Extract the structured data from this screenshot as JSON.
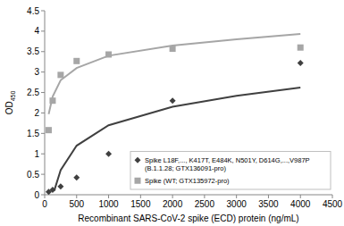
{
  "chart_data": {
    "type": "scatter",
    "x_label": "Recombinant SARS-CoV-2 spike (ECD) protein (ng/mL)",
    "y_label": "OD450",
    "xlim": [
      0,
      4500
    ],
    "xticks": [
      0,
      500,
      1000,
      1500,
      2000,
      2500,
      3000,
      3500,
      4000,
      4500
    ],
    "ylim": [
      0,
      4.5
    ],
    "yticks": [
      0,
      0.5,
      1,
      1.5,
      2,
      2.5,
      3,
      3.5,
      4,
      4.5
    ],
    "grid": false,
    "legend": "lower right",
    "series": [
      {
        "name": "Spike L18F,..., K417T, E484K, N501Y, D614G,...,V987P\n(B.1.1.28; GTX136091-pro)",
        "type": "scatter",
        "marker": "diamond",
        "color": "#404040",
        "x": [
          62.5,
          125,
          250,
          500,
          1000,
          2000,
          4000
        ],
        "values": [
          0.07,
          0.12,
          0.2,
          0.42,
          1.0,
          2.3,
          3.22
        ]
      },
      {
        "name": "Spike (WT; GTX135972-pro)",
        "type": "scatter",
        "marker": "square",
        "color": "#a6a6a6",
        "x": [
          62.5,
          125,
          250,
          500,
          1000,
          2000,
          4000
        ],
        "values": [
          1.58,
          2.3,
          2.93,
          3.27,
          3.43,
          3.57,
          3.6
        ]
      },
      {
        "type": "line",
        "line_style": "solid",
        "color": "#404040",
        "x": [
          150,
          250,
          500,
          1000,
          2000,
          3000,
          4000
        ],
        "values": [
          0.1,
          0.6,
          1.2,
          1.7,
          2.15,
          2.42,
          2.62
        ]
      },
      {
        "type": "line",
        "line_style": "solid",
        "color": "#a6a6a6",
        "x": [
          62.5,
          125,
          250,
          500,
          1000,
          2000,
          3000,
          4000
        ],
        "values": [
          1.97,
          2.4,
          2.8,
          3.1,
          3.4,
          3.65,
          3.8,
          3.93
        ]
      }
    ]
  }
}
